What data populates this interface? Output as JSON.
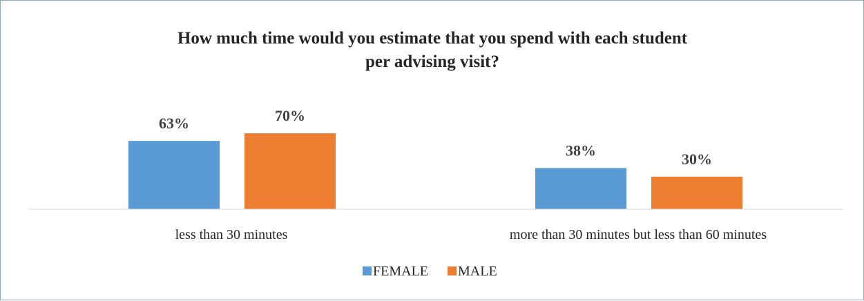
{
  "chart_data": {
    "type": "bar",
    "title": "How much time would you estimate that you spend with each student per advising visit?",
    "title_lines": [
      "How much time would you estimate that you spend with each student",
      "per advising visit?"
    ],
    "categories": [
      "less than 30 minutes",
      "more than 30 minutes but less than 60 minutes"
    ],
    "series": [
      {
        "name": "FEMALE",
        "values": [
          63,
          38
        ],
        "labels": [
          "63%",
          "38%"
        ],
        "color": "#5b9bd5"
      },
      {
        "name": "MALE",
        "values": [
          70,
          30
        ],
        "labels": [
          "70%",
          "30%"
        ],
        "color": "#ed7d31"
      }
    ],
    "ylim": [
      0,
      100
    ],
    "grid": false,
    "legend_position": "bottom",
    "axis_color": "#d9d9d9"
  }
}
